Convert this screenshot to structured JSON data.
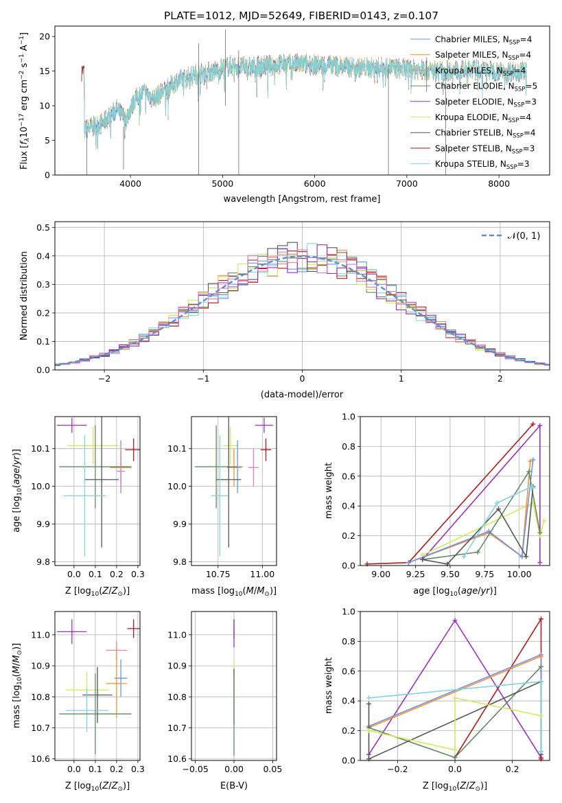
{
  "figure_title": "PLATE=1012, MJD=52649, FIBERID=0143, z=0.107",
  "colors": {
    "chabrier_miles": "#6495ed",
    "salpeter_miles": "#ff8c2a",
    "kroupa_miles": "#d2a07a",
    "chabrier_elodie": "#5f8a62",
    "salpeter_elodie": "#9c2fbf",
    "kroupa_elodie": "#d4e85a",
    "chabrier_stelib": "#555555",
    "salpeter_stelib": "#b5161a",
    "kroupa_stelib": "#7fd3df",
    "pink": "#e07ab8",
    "gaussian": "#5a8fd6",
    "grid": "#b0b0b0"
  },
  "chart_data": [
    {
      "id": "spectrum",
      "type": "line",
      "title": "PLATE=1012, MJD=52649, FIBERID=0143, z=0.107",
      "xlabel": "wavelength [Angstrom, rest frame]",
      "ylabel": "Flux [f_λ10^-17 erg cm^-2 s^-1 A^-1]",
      "xlim": [
        3180,
        8550
      ],
      "ylim": [
        0,
        21.5
      ],
      "xticks": [
        4000,
        5000,
        6000,
        7000,
        8000
      ],
      "yticks": [
        0,
        5,
        10,
        15,
        20
      ],
      "grid": false,
      "legend_position": "top-right",
      "legend": [
        {
          "label": "Chabrier MILES, N",
          "sub": "SSP",
          "suffix": "=4",
          "color_key": "chabrier_miles"
        },
        {
          "label": "Salpeter MILES, N",
          "sub": "SSP",
          "suffix": "=4",
          "color_key": "salpeter_miles"
        },
        {
          "label": "Kroupa MILES, N",
          "sub": "SSP",
          "suffix": "=4",
          "color_key": "kroupa_miles"
        },
        {
          "label": "Chabrier ELODIE, N",
          "sub": "SSP",
          "suffix": "=5",
          "color_key": "chabrier_elodie"
        },
        {
          "label": "Salpeter ELODIE, N",
          "sub": "SSP",
          "suffix": "=3",
          "color_key": "salpeter_elodie"
        },
        {
          "label": "Kroupa ELODIE, N",
          "sub": "SSP",
          "suffix": "=4",
          "color_key": "kroupa_elodie"
        },
        {
          "label": "Chabrier STELIB, N",
          "sub": "SSP",
          "suffix": "=4",
          "color_key": "chabrier_stelib"
        },
        {
          "label": "Salpeter STELIB, N",
          "sub": "SSP",
          "suffix": "=3",
          "color_key": "salpeter_stelib"
        },
        {
          "label": "Kroupa STELIB, N",
          "sub": "SSP",
          "suffix": "=3",
          "color_key": "kroupa_stelib"
        }
      ],
      "spectrum_envelope": {
        "x": [
          3500,
          3700,
          3850,
          3950,
          4050,
          4150,
          4250,
          4350,
          4500,
          4700,
          4900,
          5100,
          5300,
          5600,
          5900,
          6200,
          6500,
          6800,
          7100,
          7400,
          7700,
          8000,
          8300
        ],
        "y": [
          6.5,
          7.5,
          9.5,
          8.0,
          11.0,
          12.0,
          11.0,
          12.0,
          13.5,
          14.5,
          15.0,
          15.8,
          15.5,
          16.0,
          16.0,
          15.8,
          15.5,
          15.5,
          15.2,
          15.0,
          15.2,
          15.0,
          15.0
        ]
      }
    },
    {
      "id": "residual_hist",
      "type": "line",
      "xlabel": "(data-model)/error",
      "ylabel": "Normed distribution",
      "xlim": [
        -2.5,
        2.5
      ],
      "ylim": [
        0,
        0.52
      ],
      "xticks": [
        -2,
        -1,
        0,
        1,
        2
      ],
      "yticks": [
        0.0,
        0.1,
        0.2,
        0.3,
        0.4,
        0.5
      ],
      "grid": true,
      "legend_position": "top-right",
      "legend": [
        {
          "label": "𝒩(0, 1)",
          "color_key": "gaussian",
          "dashed": true
        }
      ],
      "bin_width": 0.1
    },
    {
      "id": "age_vs_Z",
      "type": "scatter",
      "xlabel": "Z [log10(Z/Z☉)]",
      "ylabel": "age [log10(age/yr)]",
      "xlim": [
        -0.09,
        0.31
      ],
      "ylim": [
        9.79,
        10.185
      ],
      "xticks": [
        0.0,
        0.1,
        0.2,
        0.3
      ],
      "xticklabels": [
        "0.0",
        "0.1",
        "0.2",
        "0.3"
      ],
      "yticks": [
        9.8,
        9.9,
        10.0,
        10.1
      ],
      "grid": true,
      "points": [
        {
          "color_key": "salpeter_elodie",
          "x": -0.01,
          "xerr": 0.07,
          "y": 10.162,
          "yerr": 0.02
        },
        {
          "color_key": "kroupa_elodie",
          "x": 0.09,
          "xerr": 0.12,
          "y": 10.108,
          "yerr": 0.05
        },
        {
          "color_key": "salpeter_stelib",
          "x": 0.28,
          "xerr": 0.04,
          "y": 10.097,
          "yerr": 0.03
        },
        {
          "color_key": "chabrier_miles",
          "x": 0.22,
          "xerr": 0.03,
          "y": 10.052,
          "yerr": 0.07
        },
        {
          "color_key": "salpeter_miles",
          "x": 0.22,
          "xerr": 0.05,
          "y": 10.05,
          "yerr": 0.05
        },
        {
          "color_key": "chabrier_elodie",
          "x": 0.1,
          "xerr": 0.17,
          "y": 10.052,
          "yerr": 0.11
        },
        {
          "color_key": "chabrier_stelib",
          "x": 0.13,
          "xerr": 0.08,
          "y": 10.018,
          "yerr": 0.18
        },
        {
          "color_key": "kroupa_stelib",
          "x": 0.05,
          "xerr": 0.1,
          "y": 9.975,
          "yerr": 0.16
        },
        {
          "color_key": "pink",
          "x": 0.22,
          "xerr": 0.02,
          "y": 10.04,
          "yerr": 0.05
        }
      ]
    },
    {
      "id": "age_vs_mass",
      "type": "scatter",
      "xlabel": "mass [log10(M/M☉)]",
      "ylabel": "",
      "xlim": [
        10.6,
        11.08
      ],
      "ylim": [
        9.79,
        10.185
      ],
      "xticks": [
        10.75,
        11.0
      ],
      "xticklabels": [
        "10.75",
        "11.00"
      ],
      "yticks": [
        9.8,
        9.9,
        10.0,
        10.1
      ],
      "grid": true,
      "points": [
        {
          "color_key": "salpeter_elodie",
          "x": 11.01,
          "xerr": 0.05,
          "y": 10.162,
          "yerr": 0.02
        },
        {
          "color_key": "kroupa_elodie",
          "x": 10.82,
          "xerr": 0.04,
          "y": 10.108,
          "yerr": 0.05
        },
        {
          "color_key": "salpeter_stelib",
          "x": 11.02,
          "xerr": 0.03,
          "y": 10.097,
          "yerr": 0.03
        },
        {
          "color_key": "chabrier_miles",
          "x": 10.86,
          "xerr": 0.03,
          "y": 10.052,
          "yerr": 0.07
        },
        {
          "color_key": "salpeter_miles",
          "x": 10.84,
          "xerr": 0.04,
          "y": 10.05,
          "yerr": 0.05
        },
        {
          "color_key": "chabrier_elodie",
          "x": 10.74,
          "xerr": 0.12,
          "y": 10.052,
          "yerr": 0.11
        },
        {
          "color_key": "chabrier_stelib",
          "x": 10.81,
          "xerr": 0.07,
          "y": 10.018,
          "yerr": 0.18
        },
        {
          "color_key": "kroupa_stelib",
          "x": 10.76,
          "xerr": 0.05,
          "y": 9.975,
          "yerr": 0.16
        },
        {
          "color_key": "pink",
          "x": 10.95,
          "xerr": 0.03,
          "y": 10.05,
          "yerr": 0.05
        }
      ]
    },
    {
      "id": "weight_vs_age",
      "type": "line",
      "xlabel": "age [log10(age/yr)]",
      "ylabel": "mass weight",
      "xlim": [
        8.85,
        10.22
      ],
      "ylim": [
        0,
        1.0
      ],
      "xticks": [
        9.0,
        9.25,
        9.5,
        9.75,
        10.0
      ],
      "xticklabels": [
        "9.00",
        "9.25",
        "9.50",
        "9.75",
        "10.00"
      ],
      "yticks": [
        0.0,
        0.2,
        0.4,
        0.6,
        0.8,
        1.0
      ],
      "grid": true,
      "series": [
        {
          "color_key": "salpeter_stelib",
          "x": [
            8.9,
            9.2,
            10.1
          ],
          "y": [
            0.01,
            0.02,
            0.95
          ]
        },
        {
          "color_key": "salpeter_elodie",
          "x": [
            9.3,
            10.15,
            10.15
          ],
          "y": [
            0.04,
            0.94,
            0.02
          ]
        },
        {
          "color_key": "kroupa_elodie",
          "x": [
            9.3,
            10.1,
            10.15,
            10.18
          ],
          "y": [
            0.07,
            0.42,
            0.2,
            0.3
          ]
        },
        {
          "color_key": "salpeter_miles",
          "x": [
            9.2,
            9.78,
            10.02,
            10.08
          ],
          "y": [
            0.02,
            0.22,
            0.06,
            0.7
          ]
        },
        {
          "color_key": "chabrier_miles",
          "x": [
            9.2,
            9.78,
            10.02,
            10.1
          ],
          "y": [
            0.02,
            0.23,
            0.06,
            0.71
          ]
        },
        {
          "color_key": "chabrier_elodie",
          "x": [
            9.3,
            9.7,
            10.07,
            10.15
          ],
          "y": [
            0.04,
            0.09,
            0.63,
            0.22
          ]
        },
        {
          "color_key": "chabrier_stelib",
          "x": [
            9.3,
            9.48,
            9.85,
            10.05,
            10.1
          ],
          "y": [
            0.04,
            0.01,
            0.38,
            0.06,
            0.53
          ]
        },
        {
          "color_key": "kroupa_stelib",
          "x": [
            9.6,
            9.84,
            10.09,
            10.1
          ],
          "y": [
            0.06,
            0.42,
            0.53,
            0.52
          ]
        }
      ]
    },
    {
      "id": "mass_vs_Z",
      "type": "scatter",
      "xlabel": "Z [log10(Z/Z☉)]",
      "ylabel": "mass [log10(M/M☉)]",
      "xlim": [
        -0.09,
        0.31
      ],
      "ylim": [
        10.595,
        11.075
      ],
      "xticks": [
        0.0,
        0.1,
        0.2,
        0.3
      ],
      "xticklabels": [
        "0.0",
        "0.1",
        "0.2",
        "0.3"
      ],
      "yticks": [
        10.6,
        10.7,
        10.8,
        10.9,
        11.0
      ],
      "grid": true,
      "points": [
        {
          "color_key": "salpeter_elodie",
          "x": -0.01,
          "xerr": 0.07,
          "y": 11.01,
          "yerr": 0.04
        },
        {
          "color_key": "salpeter_stelib",
          "x": 0.28,
          "xerr": 0.03,
          "y": 11.02,
          "yerr": 0.03
        },
        {
          "color_key": "pink",
          "x": 0.2,
          "xerr": 0.05,
          "y": 10.95,
          "yerr": 0.03
        },
        {
          "color_key": "chabrier_miles",
          "x": 0.22,
          "xerr": 0.03,
          "y": 10.86,
          "yerr": 0.06
        },
        {
          "color_key": "salpeter_miles",
          "x": 0.2,
          "xerr": 0.05,
          "y": 10.843,
          "yerr": 0.11
        },
        {
          "color_key": "kroupa_elodie",
          "x": 0.06,
          "xerr": 0.1,
          "y": 10.822,
          "yerr": 0.06
        },
        {
          "color_key": "chabrier_stelib",
          "x": 0.11,
          "xerr": 0.07,
          "y": 10.806,
          "yerr": 0.09
        },
        {
          "color_key": "kroupa_stelib",
          "x": 0.06,
          "xerr": 0.1,
          "y": 10.756,
          "yerr": 0.07
        },
        {
          "color_key": "chabrier_elodie",
          "x": 0.1,
          "xerr": 0.17,
          "y": 10.745,
          "yerr": 0.13
        }
      ]
    },
    {
      "id": "mass_vs_EBV",
      "type": "scatter",
      "xlabel": "E(B-V)",
      "ylabel": "",
      "xlim": [
        -0.055,
        0.055
      ],
      "ylim": [
        10.595,
        11.075
      ],
      "xticks": [
        -0.05,
        0.0,
        0.05
      ],
      "xticklabels": [
        "−0.05",
        "0.00",
        "0.05"
      ],
      "yticks": [
        10.6,
        10.7,
        10.8,
        10.9,
        11.0
      ],
      "grid": true,
      "points": [
        {
          "color_key": "salpeter_stelib",
          "x": 0.0,
          "xerr": 0,
          "y": 11.02,
          "yerr": 0.03
        },
        {
          "color_key": "salpeter_elodie",
          "x": 0.0,
          "xerr": 0,
          "y": 11.0,
          "yerr": 0.04
        },
        {
          "color_key": "kroupa_elodie",
          "x": 0.0,
          "xerr": 0,
          "y": 10.85,
          "yerr": 0.06
        },
        {
          "color_key": "chabrier_stelib",
          "x": 0.0,
          "xerr": 0,
          "y": 10.8,
          "yerr": 0.09
        },
        {
          "color_key": "chabrier_elodie",
          "x": 0.0,
          "xerr": 0,
          "y": 10.74,
          "yerr": 0.13
        }
      ]
    },
    {
      "id": "weight_vs_Z",
      "type": "line",
      "xlabel": "Z [log10(Z/Z☉)]",
      "ylabel": "mass weight",
      "xlim": [
        -0.33,
        0.33
      ],
      "ylim": [
        0,
        1.0
      ],
      "xticks": [
        -0.2,
        0.0,
        0.2
      ],
      "xticklabels": [
        "−0.2",
        "0.0",
        "0.2"
      ],
      "yticks": [
        0.0,
        0.2,
        0.4,
        0.6,
        0.8,
        1.0
      ],
      "grid": true,
      "series": [
        {
          "color_key": "salpeter_elodie",
          "x": [
            -0.3,
            0.0,
            0.3
          ],
          "y": [
            0.04,
            0.94,
            0.02
          ]
        },
        {
          "color_key": "salpeter_stelib",
          "x": [
            0.0,
            0.3,
            0.3
          ],
          "y": [
            0.02,
            0.95,
            0.01
          ]
        },
        {
          "color_key": "chabrier_miles",
          "x": [
            -0.3,
            0.3,
            0.3
          ],
          "y": [
            0.23,
            0.71,
            0.06
          ]
        },
        {
          "color_key": "salpeter_miles",
          "x": [
            -0.3,
            0.3
          ],
          "y": [
            0.22,
            0.7
          ]
        },
        {
          "color_key": "chabrier_elodie",
          "x": [
            -0.3,
            0.0,
            0.3
          ],
          "y": [
            0.22,
            0.02,
            0.63
          ]
        },
        {
          "color_key": "chabrier_stelib",
          "x": [
            -0.3,
            -0.3,
            0.3,
            0.3
          ],
          "y": [
            0.38,
            0.01,
            0.53,
            0.04
          ]
        },
        {
          "color_key": "kroupa_stelib",
          "x": [
            -0.3,
            0.3,
            0.3
          ],
          "y": [
            0.42,
            0.53,
            0.06
          ]
        },
        {
          "color_key": "kroupa_elodie",
          "x": [
            -0.3,
            0.0,
            0.0,
            0.3
          ],
          "y": [
            0.2,
            0.07,
            0.42,
            0.3
          ]
        }
      ]
    }
  ]
}
